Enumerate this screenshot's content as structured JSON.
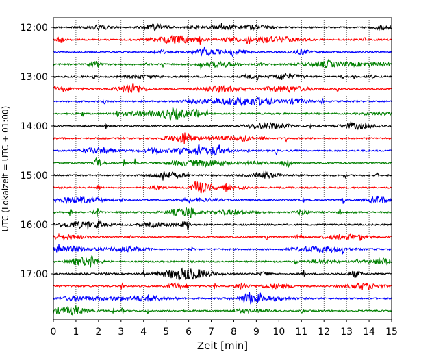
{
  "chart_data": {
    "type": "line",
    "title": "",
    "xlabel": "Zeit  [min]",
    "ylabel": "UTC (Lokalzeit = UTC + 01:00)",
    "xlim": [
      0,
      15
    ],
    "x_ticks": [
      0,
      1,
      2,
      3,
      4,
      5,
      6,
      7,
      8,
      9,
      10,
      11,
      12,
      13,
      14,
      15
    ],
    "y_tick_labels": [
      "12:00",
      "13:00",
      "14:00",
      "15:00",
      "16:00",
      "17:00"
    ],
    "y_tick_trace_index": [
      0,
      4,
      8,
      12,
      16,
      20
    ],
    "trace_interval_minutes": 15,
    "grid": "vertical dotted at each minute",
    "series_colors": [
      "#000000",
      "#ff0000",
      "#0000ff",
      "#008000"
    ],
    "traces": [
      {
        "start": "12:00",
        "color": "#000000"
      },
      {
        "start": "12:15",
        "color": "#ff0000"
      },
      {
        "start": "12:30",
        "color": "#0000ff"
      },
      {
        "start": "12:45",
        "color": "#008000"
      },
      {
        "start": "13:00",
        "color": "#000000"
      },
      {
        "start": "13:15",
        "color": "#ff0000"
      },
      {
        "start": "13:30",
        "color": "#0000ff"
      },
      {
        "start": "13:45",
        "color": "#008000"
      },
      {
        "start": "14:00",
        "color": "#000000"
      },
      {
        "start": "14:15",
        "color": "#ff0000"
      },
      {
        "start": "14:30",
        "color": "#0000ff"
      },
      {
        "start": "14:45",
        "color": "#008000"
      },
      {
        "start": "15:00",
        "color": "#000000"
      },
      {
        "start": "15:15",
        "color": "#ff0000"
      },
      {
        "start": "15:30",
        "color": "#0000ff"
      },
      {
        "start": "15:45",
        "color": "#008000"
      },
      {
        "start": "16:00",
        "color": "#000000"
      },
      {
        "start": "16:15",
        "color": "#ff0000"
      },
      {
        "start": "16:30",
        "color": "#0000ff"
      },
      {
        "start": "16:45",
        "color": "#008000"
      },
      {
        "start": "17:00",
        "color": "#000000"
      },
      {
        "start": "17:15",
        "color": "#ff0000"
      },
      {
        "start": "17:30",
        "color": "#0000ff"
      },
      {
        "start": "17:45",
        "color": "#008000"
      }
    ]
  }
}
